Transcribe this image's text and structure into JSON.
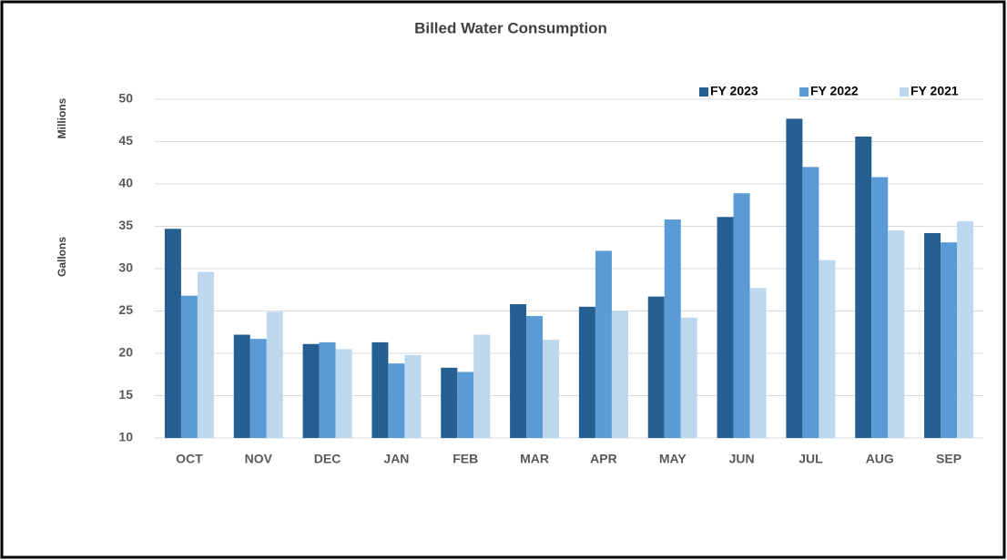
{
  "chart_data": {
    "type": "bar",
    "title": "Billed Water Consumption",
    "y_label_top": "Millions",
    "y_label": "Gallons",
    "categories": [
      "OCT",
      "NOV",
      "DEC",
      "JAN",
      "FEB",
      "MAR",
      "APR",
      "MAY",
      "JUN",
      "JUL",
      "AUG",
      "SEP"
    ],
    "series": [
      {
        "name": "FY 2023",
        "color": "#255e91",
        "values": [
          34.7,
          22.2,
          21.1,
          21.3,
          18.3,
          25.8,
          25.5,
          26.7,
          36.1,
          47.7,
          45.6,
          34.2
        ]
      },
      {
        "name": "FY 2022",
        "color": "#5b9bd5",
        "values": [
          26.8,
          21.7,
          21.3,
          18.8,
          17.8,
          24.4,
          32.1,
          35.8,
          38.9,
          42.0,
          40.8,
          33.1
        ]
      },
      {
        "name": "FY 2021",
        "color": "#bdd7ee",
        "values": [
          29.6,
          24.9,
          20.5,
          19.8,
          22.2,
          21.6,
          25.0,
          24.2,
          27.7,
          31.0,
          34.5,
          35.6
        ]
      }
    ],
    "ylim": [
      10,
      50
    ],
    "yticks": [
      10,
      15,
      20,
      25,
      30,
      35,
      40,
      45,
      50
    ],
    "grid": true,
    "legend": "top-right"
  }
}
